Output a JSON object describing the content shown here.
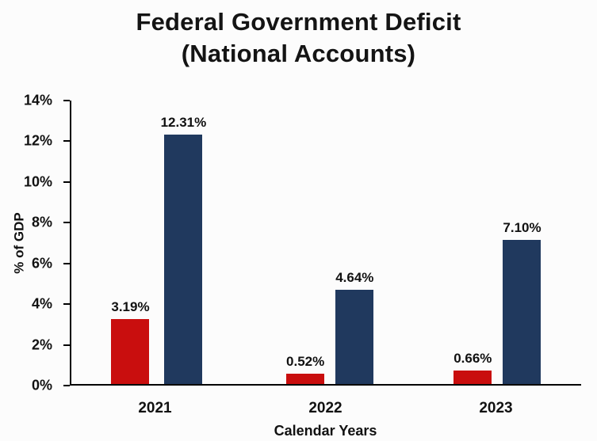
{
  "chart_data": {
    "type": "bar",
    "title": "Federal Government Deficit",
    "subtitle": "(National Accounts)",
    "xlabel": "Calendar Years",
    "ylabel": "%  of GDP",
    "categories": [
      "2021",
      "2022",
      "2023"
    ],
    "series": [
      {
        "name": "red-series",
        "color": "#c90e0e",
        "values": [
          3.19,
          0.52,
          0.66
        ],
        "labels": [
          "3.19%",
          "0.52%",
          "0.66%"
        ]
      },
      {
        "name": "navy-series",
        "color": "#20395e",
        "values": [
          12.31,
          4.64,
          7.1
        ],
        "labels": [
          "12.31%",
          "4.64%",
          "7.10%"
        ]
      }
    ],
    "ylim": [
      0,
      14
    ],
    "ytick_step": 2,
    "yticks": [
      "0%",
      "2%",
      "4%",
      "6%",
      "8%",
      "10%",
      "12%",
      "14%"
    ],
    "grid": false,
    "legend": "none",
    "colors": {
      "axis": "#000000",
      "text": "#111111",
      "background": "#fcfcfc"
    }
  }
}
